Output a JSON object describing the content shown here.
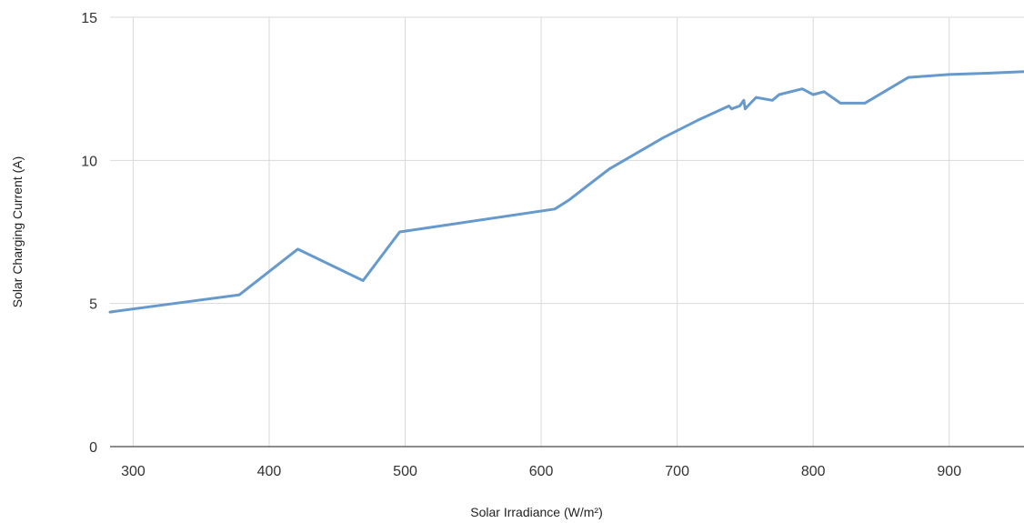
{
  "chart_data": {
    "type": "line",
    "title": "",
    "xlabel": "Solar Irradiance (W/m²)",
    "ylabel": "Solar Charging Current (A)",
    "xlim": [
      283,
      955
    ],
    "ylim": [
      0,
      15
    ],
    "x_ticks": [
      300,
      400,
      500,
      600,
      700,
      800,
      900
    ],
    "y_ticks": [
      0,
      5,
      10,
      15
    ],
    "grid": true,
    "legend": "none",
    "series": [
      {
        "color": "#6699cc",
        "x": [
          283,
          330,
          378,
          421,
          469,
          496,
          610,
          620,
          650,
          690,
          715,
          738,
          740,
          746,
          749,
          750,
          752,
          758,
          770,
          775,
          792,
          800,
          808,
          820,
          838,
          870,
          900,
          930,
          955
        ],
        "y": [
          4.7,
          5.0,
          5.3,
          6.9,
          5.8,
          7.5,
          8.3,
          8.6,
          9.7,
          10.8,
          11.4,
          11.9,
          11.8,
          11.9,
          12.1,
          11.8,
          11.9,
          12.2,
          12.1,
          12.3,
          12.5,
          12.3,
          12.4,
          12.0,
          12.0,
          12.9,
          13.0,
          13.05,
          13.1
        ]
      }
    ]
  }
}
